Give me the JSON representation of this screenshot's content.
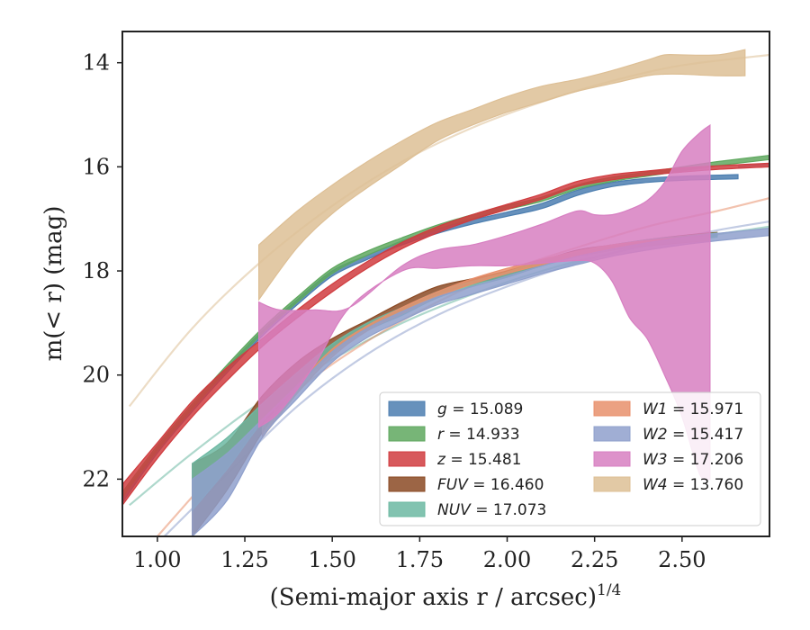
{
  "chart_data": {
    "type": "area",
    "xlabel": "(Semi-major axis r / arcsec)",
    "xlabel_sup": "1/4",
    "ylabel": "m(< r) (mag)",
    "xlim": [
      0.9,
      2.75
    ],
    "ylim": [
      23.1,
      13.4
    ],
    "y_inverted": true,
    "grid": false,
    "legend_position": "lower-right",
    "x_ticks": [
      1.0,
      1.25,
      1.5,
      1.75,
      2.0,
      2.25,
      2.5
    ],
    "y_ticks": [
      14,
      16,
      18,
      20,
      22
    ],
    "series": [
      {
        "name": "g = 15.089",
        "band": "g",
        "value": "15.089",
        "color": "#4c7eb0",
        "x": [
          0.9,
          1.0,
          1.1,
          1.2,
          1.3,
          1.4,
          1.5,
          1.6,
          1.7,
          1.8,
          1.9,
          2.0,
          2.1,
          2.2,
          2.3,
          2.4,
          2.5,
          2.66
        ],
        "y_low": [
          22.3,
          21.4,
          20.6,
          19.85,
          19.15,
          18.55,
          18.0,
          17.7,
          17.42,
          17.2,
          17.02,
          16.87,
          16.7,
          16.45,
          16.3,
          16.22,
          16.18,
          16.15
        ],
        "y_high": [
          22.45,
          21.5,
          20.7,
          19.95,
          19.25,
          18.65,
          18.1,
          17.78,
          17.5,
          17.28,
          17.1,
          16.95,
          16.8,
          16.55,
          16.38,
          16.3,
          16.26,
          16.23
        ],
        "fit_x": [
          2.66,
          2.75
        ],
        "fit_y": [
          16.0,
          15.95
        ]
      },
      {
        "name": "r = 14.933",
        "band": "r",
        "value": "14.933",
        "color": "#5fa85f",
        "x": [
          0.9,
          1.0,
          1.1,
          1.2,
          1.3,
          1.4,
          1.5,
          1.6,
          1.7,
          1.8,
          1.9,
          2.0,
          2.1,
          2.2,
          2.3,
          2.4,
          2.5,
          2.6,
          2.75
        ],
        "y_low": [
          22.25,
          21.35,
          20.55,
          19.8,
          19.1,
          18.5,
          17.95,
          17.62,
          17.36,
          17.12,
          16.92,
          16.74,
          16.58,
          16.35,
          16.2,
          16.1,
          16.0,
          15.9,
          15.78
        ],
        "y_high": [
          22.35,
          21.45,
          20.65,
          19.9,
          19.2,
          18.6,
          18.05,
          17.7,
          17.44,
          17.2,
          17.0,
          16.82,
          16.66,
          16.43,
          16.28,
          16.18,
          16.08,
          15.98,
          15.86
        ]
      },
      {
        "name": "z = 15.481",
        "band": "z",
        "value": "15.481",
        "color": "#d03c3f",
        "x": [
          0.9,
          1.0,
          1.1,
          1.2,
          1.3,
          1.4,
          1.5,
          1.6,
          1.7,
          1.8,
          1.9,
          2.0,
          2.1,
          2.2,
          2.3,
          2.4,
          2.5,
          2.6,
          2.75
        ],
        "y_low": [
          22.1,
          21.3,
          20.5,
          19.85,
          19.3,
          18.75,
          18.25,
          17.82,
          17.45,
          17.15,
          16.92,
          16.72,
          16.52,
          16.28,
          16.15,
          16.08,
          16.02,
          15.98,
          15.93
        ],
        "y_high": [
          22.5,
          21.6,
          20.8,
          20.1,
          19.45,
          18.9,
          18.4,
          17.95,
          17.57,
          17.27,
          17.02,
          16.82,
          16.62,
          16.38,
          16.25,
          16.16,
          16.1,
          16.05,
          16.0
        ]
      },
      {
        "name": "FUV = 16.460",
        "band": "FUV",
        "value": "16.460",
        "color": "#8b4a24",
        "x": [
          1.1,
          1.2,
          1.3,
          1.4,
          1.5,
          1.6,
          1.7,
          1.8,
          1.9,
          2.0,
          2.1,
          2.2,
          2.3,
          2.4,
          2.5,
          2.6
        ],
        "y_low": [
          21.7,
          21.3,
          20.4,
          19.75,
          19.3,
          18.95,
          18.6,
          18.3,
          18.15,
          18.0,
          17.8,
          17.6,
          17.5,
          17.4,
          17.32,
          17.26
        ],
        "y_high": [
          23.1,
          22.2,
          21.1,
          20.2,
          19.55,
          19.1,
          18.75,
          18.45,
          18.25,
          18.1,
          17.9,
          17.72,
          17.6,
          17.48,
          17.4,
          17.34
        ]
      },
      {
        "name": "NUV = 17.073",
        "band": "NUV",
        "value": "17.073",
        "color": "#6cb8a2",
        "x": [
          1.1,
          1.2,
          1.3,
          1.4,
          1.5,
          1.6,
          1.7,
          1.8,
          1.9,
          2.0,
          2.1,
          2.2,
          2.3,
          2.4,
          2.5,
          2.6
        ],
        "y_low": [
          21.7,
          21.2,
          20.55,
          19.95,
          19.4,
          19.0,
          18.7,
          18.4,
          18.2,
          18.02,
          17.8,
          17.62,
          17.5,
          17.4,
          17.33,
          17.27
        ],
        "y_high": [
          22.6,
          21.8,
          20.9,
          20.2,
          19.6,
          19.15,
          18.85,
          18.52,
          18.3,
          18.12,
          17.9,
          17.72,
          17.6,
          17.5,
          17.42,
          17.35
        ],
        "fit_x": [
          0.92,
          1.1,
          1.3,
          1.5,
          1.7,
          1.9,
          2.1,
          2.3,
          2.5,
          2.75
        ],
        "fit_y": [
          22.5,
          21.5,
          20.5,
          19.7,
          19.0,
          18.45,
          18.0,
          17.65,
          17.4,
          17.15
        ]
      },
      {
        "name": "W1 = 15.971",
        "band": "W1",
        "value": "15.971",
        "color": "#e8906c",
        "x": [
          1.3,
          1.4,
          1.5,
          1.6,
          1.7,
          1.8,
          1.9,
          2.0,
          2.1,
          2.2,
          2.3,
          2.4,
          2.5,
          2.58
        ],
        "y_low": [
          21.0,
          20.2,
          19.5,
          19.05,
          18.7,
          18.4,
          18.15,
          17.95,
          17.78,
          17.62,
          17.5,
          17.42,
          17.36,
          17.32
        ],
        "y_high": [
          21.2,
          20.35,
          19.65,
          19.15,
          18.82,
          18.5,
          18.25,
          18.05,
          17.88,
          17.72,
          17.6,
          17.52,
          17.46,
          17.42
        ],
        "fit_x": [
          1.0,
          1.2,
          1.4,
          1.6,
          1.8,
          2.0,
          2.2,
          2.4,
          2.6,
          2.75
        ],
        "fit_y": [
          23.1,
          21.6,
          20.3,
          19.35,
          18.6,
          18.0,
          17.55,
          17.15,
          16.85,
          16.6
        ]
      },
      {
        "name": "W2 = 15.417",
        "band": "W2",
        "value": "15.417",
        "color": "#8fa0cc",
        "x": [
          1.1,
          1.2,
          1.3,
          1.4,
          1.5,
          1.6,
          1.7,
          1.8,
          1.9,
          2.0,
          2.1,
          2.2,
          2.3,
          2.4,
          2.5,
          2.6,
          2.75
        ],
        "y_low": [
          22.0,
          21.5,
          20.85,
          20.2,
          19.55,
          19.1,
          18.78,
          18.5,
          18.3,
          18.1,
          17.9,
          17.72,
          17.58,
          17.46,
          17.36,
          17.28,
          17.18
        ],
        "y_high": [
          23.1,
          22.4,
          21.2,
          20.45,
          19.75,
          19.28,
          18.95,
          18.65,
          18.45,
          18.25,
          18.05,
          17.88,
          17.72,
          17.6,
          17.5,
          17.42,
          17.32
        ],
        "fit_x": [
          1.02,
          1.2,
          1.4,
          1.6,
          1.8,
          2.0,
          2.2,
          2.4,
          2.6,
          2.75
        ],
        "fit_y": [
          23.1,
          21.9,
          20.6,
          19.6,
          18.85,
          18.3,
          17.85,
          17.5,
          17.22,
          17.05
        ]
      },
      {
        "name": "W3 = 17.206",
        "band": "W3",
        "value": "17.206",
        "color": "#d77fc1",
        "x": [
          1.29,
          1.35,
          1.45,
          1.55,
          1.7,
          1.8,
          1.9,
          2.0,
          2.1,
          2.2,
          2.25,
          2.3,
          2.35,
          2.4,
          2.45,
          2.5,
          2.55,
          2.58
        ],
        "y_low": [
          18.6,
          18.75,
          18.75,
          18.7,
          17.9,
          17.6,
          17.5,
          17.32,
          17.1,
          16.85,
          16.92,
          16.92,
          16.82,
          16.65,
          16.3,
          15.7,
          15.35,
          15.2
        ],
        "y_high": [
          21.0,
          20.7,
          19.8,
          18.7,
          18.0,
          17.95,
          17.9,
          17.9,
          17.85,
          17.8,
          17.85,
          18.2,
          18.9,
          19.3,
          20.0,
          20.8,
          21.9,
          22.0
        ]
      },
      {
        "name": "W4 = 13.760",
        "band": "W4",
        "value": "13.760",
        "color": "#ddbf95",
        "x": [
          1.29,
          1.4,
          1.5,
          1.6,
          1.7,
          1.8,
          1.9,
          2.0,
          2.1,
          2.2,
          2.3,
          2.4,
          2.45,
          2.5,
          2.6,
          2.68
        ],
        "y_low": [
          17.5,
          16.85,
          16.35,
          15.9,
          15.5,
          15.15,
          14.9,
          14.65,
          14.45,
          14.32,
          14.15,
          13.95,
          13.85,
          13.85,
          13.85,
          13.75
        ],
        "y_high": [
          18.55,
          17.55,
          16.9,
          16.4,
          15.95,
          15.5,
          15.2,
          14.95,
          14.75,
          14.55,
          14.4,
          14.25,
          14.22,
          14.22,
          14.25,
          14.25
        ],
        "fit_x": [
          0.92,
          1.1,
          1.3,
          1.5,
          1.7,
          1.9,
          2.1,
          2.3,
          2.5,
          2.75
        ],
        "fit_y": [
          20.6,
          19.1,
          17.8,
          16.75,
          15.9,
          15.25,
          14.75,
          14.35,
          14.05,
          13.85
        ]
      }
    ]
  }
}
